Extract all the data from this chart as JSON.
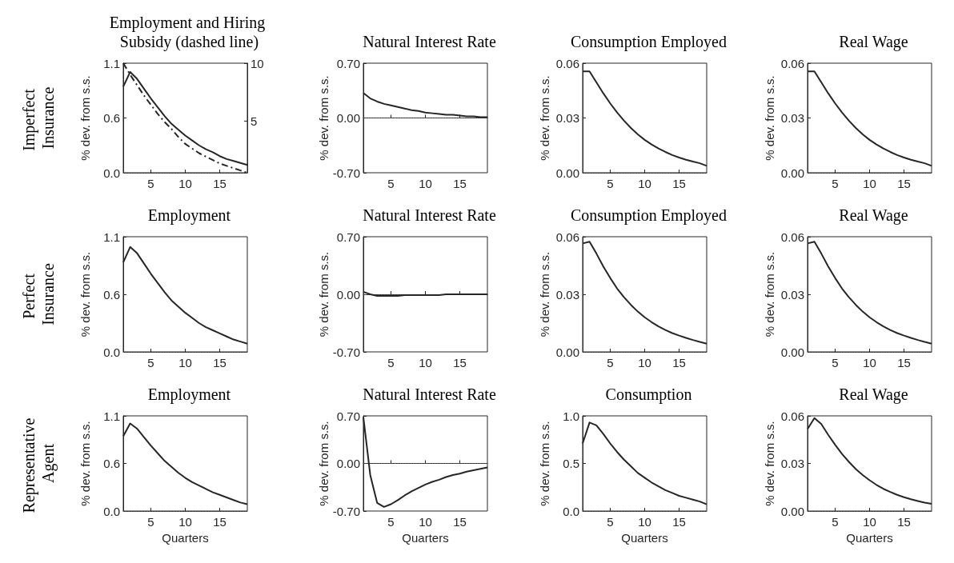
{
  "chart_data": [
    {
      "type": "line",
      "title": "Employment and Hiring Subsidy (dashed line)",
      "ylabel": "% dev. from s.s.",
      "annotations": [
        "Imperfect Insurance"
      ],
      "x": [
        1,
        2,
        3,
        4,
        5,
        6,
        7,
        8,
        9,
        10,
        11,
        12,
        13,
        14,
        15,
        16,
        17,
        18,
        19
      ],
      "xlim": [
        1,
        19
      ],
      "xticks": [
        5,
        10,
        15
      ],
      "ylim": [
        0,
        1.12
      ],
      "yticks": [
        {
          "value": 0,
          "label": "0.0"
        },
        {
          "value": 0.56,
          "label": "0.6"
        },
        {
          "value": 1.12,
          "label": "1.1"
        }
      ],
      "y2lim": [
        0.5,
        10
      ],
      "y2ticks": [
        5,
        10
      ],
      "grid": false,
      "marker": "none",
      "series": [
        {
          "color": "#262626",
          "line_style": "solid",
          "values": [
            0.88,
            1.03,
            0.96,
            0.86,
            0.76,
            0.67,
            0.58,
            0.5,
            0.44,
            0.38,
            0.33,
            0.28,
            0.24,
            0.21,
            0.17,
            0.14,
            0.12,
            0.1,
            0.08
          ]
        },
        {
          "color": "#262626",
          "line_style": "dashed",
          "axis": "y2",
          "values": [
            10,
            9.0,
            8.1,
            7.2,
            6.4,
            5.6,
            4.9,
            4.3,
            3.6,
            3.0,
            2.6,
            2.2,
            1.9,
            1.6,
            1.3,
            1.1,
            0.9,
            0.7,
            0.5
          ]
        }
      ],
      "ref_lines": [
        {
          "axis": "y",
          "value": 0,
          "line_style": "dotted",
          "color": "#555555"
        }
      ]
    },
    {
      "type": "line",
      "title": "Natural Interest Rate",
      "ylabel": "% dev. from s.s.",
      "x": [
        1,
        2,
        3,
        4,
        5,
        6,
        7,
        8,
        9,
        10,
        11,
        12,
        13,
        14,
        15,
        16,
        17,
        18,
        19
      ],
      "xlim": [
        1,
        19
      ],
      "xticks": [
        5,
        10,
        15
      ],
      "ylim": [
        -0.7,
        0.7
      ],
      "yticks": [
        {
          "value": -0.7,
          "label": "-0.70"
        },
        {
          "value": 0,
          "label": "0.00"
        },
        {
          "value": 0.7,
          "label": "0.70"
        }
      ],
      "grid": false,
      "marker": "none",
      "series": [
        {
          "color": "#262626",
          "line_style": "solid",
          "values": [
            0.32,
            0.25,
            0.21,
            0.18,
            0.16,
            0.14,
            0.12,
            0.1,
            0.09,
            0.07,
            0.06,
            0.05,
            0.04,
            0.04,
            0.03,
            0.02,
            0.02,
            0.01,
            0.01
          ]
        }
      ],
      "ref_lines": [
        {
          "axis": "y",
          "value": 0,
          "line_style": "dotted",
          "color": "#555555"
        }
      ]
    },
    {
      "type": "line",
      "title": "Consumption Employed",
      "ylabel": "% dev. from s.s.",
      "x": [
        1,
        2,
        3,
        4,
        5,
        6,
        7,
        8,
        9,
        10,
        11,
        12,
        13,
        14,
        15,
        16,
        17,
        18,
        19
      ],
      "xlim": [
        1,
        19
      ],
      "xticks": [
        5,
        10,
        15
      ],
      "ylim": [
        0,
        0.06
      ],
      "yticks": [
        {
          "value": 0,
          "label": "0.00"
        },
        {
          "value": 0.03,
          "label": "0.03"
        },
        {
          "value": 0.06,
          "label": "0.06"
        }
      ],
      "grid": false,
      "marker": "none",
      "series": [
        {
          "color": "#262626",
          "line_style": "solid",
          "values": [
            0.0555,
            0.0555,
            0.0495,
            0.0435,
            0.038,
            0.033,
            0.0285,
            0.0245,
            0.021,
            0.018,
            0.0155,
            0.0133,
            0.0114,
            0.0097,
            0.0083,
            0.0071,
            0.0061,
            0.0052,
            0.0038
          ]
        }
      ],
      "ref_lines": [
        {
          "axis": "y",
          "value": 0,
          "line_style": "dotted",
          "color": "#555555"
        }
      ]
    },
    {
      "type": "line",
      "title": "Real Wage",
      "ylabel": "% dev. from s.s.",
      "x": [
        1,
        2,
        3,
        4,
        5,
        6,
        7,
        8,
        9,
        10,
        11,
        12,
        13,
        14,
        15,
        16,
        17,
        18,
        19
      ],
      "xlim": [
        1,
        19
      ],
      "xticks": [
        5,
        10,
        15
      ],
      "ylim": [
        0,
        0.06
      ],
      "yticks": [
        {
          "value": 0,
          "label": "0.00"
        },
        {
          "value": 0.03,
          "label": "0.03"
        },
        {
          "value": 0.06,
          "label": "0.06"
        }
      ],
      "grid": false,
      "marker": "none",
      "series": [
        {
          "color": "#262626",
          "line_style": "solid",
          "values": [
            0.0555,
            0.0555,
            0.0495,
            0.0435,
            0.038,
            0.033,
            0.0285,
            0.0245,
            0.021,
            0.018,
            0.0155,
            0.0133,
            0.0114,
            0.0097,
            0.0083,
            0.0071,
            0.0061,
            0.0052,
            0.0038
          ]
        }
      ],
      "ref_lines": [
        {
          "axis": "y",
          "value": 0,
          "line_style": "dotted",
          "color": "#555555"
        }
      ]
    },
    {
      "type": "line",
      "title": "Employment",
      "ylabel": "% dev. from s.s.",
      "annotations": [
        "Perfect Insurance"
      ],
      "x": [
        1,
        2,
        3,
        4,
        5,
        6,
        7,
        8,
        9,
        10,
        11,
        12,
        13,
        14,
        15,
        16,
        17,
        18,
        19
      ],
      "xlim": [
        1,
        19
      ],
      "xticks": [
        5,
        10,
        15
      ],
      "ylim": [
        0,
        1.12
      ],
      "yticks": [
        {
          "value": 0,
          "label": "0.0"
        },
        {
          "value": 0.56,
          "label": "0.6"
        },
        {
          "value": 1.12,
          "label": "1.1"
        }
      ],
      "grid": false,
      "marker": "none",
      "series": [
        {
          "color": "#262626",
          "line_style": "solid",
          "values": [
            0.87,
            1.02,
            0.96,
            0.86,
            0.76,
            0.67,
            0.58,
            0.5,
            0.44,
            0.38,
            0.33,
            0.28,
            0.24,
            0.21,
            0.18,
            0.15,
            0.12,
            0.1,
            0.08
          ]
        }
      ],
      "ref_lines": [
        {
          "axis": "y",
          "value": 0,
          "line_style": "dotted",
          "color": "#555555"
        }
      ]
    },
    {
      "type": "line",
      "title": "Natural Interest Rate",
      "ylabel": "% dev. from s.s.",
      "x": [
        1,
        2,
        3,
        4,
        5,
        6,
        7,
        8,
        9,
        10,
        11,
        12,
        13,
        14,
        15,
        16,
        17,
        18,
        19
      ],
      "xlim": [
        1,
        19
      ],
      "xticks": [
        5,
        10,
        15
      ],
      "ylim": [
        -0.7,
        0.7
      ],
      "yticks": [
        {
          "value": -0.7,
          "label": "-0.70"
        },
        {
          "value": 0,
          "label": "0.00"
        },
        {
          "value": 0.7,
          "label": "0.70"
        }
      ],
      "grid": false,
      "marker": "none",
      "series": [
        {
          "color": "#262626",
          "line_style": "solid",
          "values": [
            0.03,
            0,
            -0.02,
            -0.02,
            -0.02,
            -0.02,
            -0.01,
            -0.01,
            -0.01,
            -0.01,
            -0.01,
            -0.01,
            0,
            0,
            0,
            0,
            0,
            0,
            0
          ]
        }
      ],
      "ref_lines": [
        {
          "axis": "y",
          "value": 0,
          "line_style": "dotted",
          "color": "#555555"
        }
      ]
    },
    {
      "type": "line",
      "title": "Consumption Employed",
      "ylabel": "% dev. from s.s.",
      "x": [
        1,
        2,
        3,
        4,
        5,
        6,
        7,
        8,
        9,
        10,
        11,
        12,
        13,
        14,
        15,
        16,
        17,
        18,
        19
      ],
      "xlim": [
        1,
        19
      ],
      "xticks": [
        5,
        10,
        15
      ],
      "ylim": [
        0,
        0.06
      ],
      "yticks": [
        {
          "value": 0,
          "label": "0.00"
        },
        {
          "value": 0.03,
          "label": "0.03"
        },
        {
          "value": 0.06,
          "label": "0.06"
        }
      ],
      "grid": false,
      "marker": "none",
      "series": [
        {
          "color": "#262626",
          "line_style": "solid",
          "values": [
            0.0565,
            0.0574,
            0.0512,
            0.0445,
            0.0385,
            0.033,
            0.0285,
            0.0245,
            0.021,
            0.018,
            0.0155,
            0.0133,
            0.0114,
            0.0098,
            0.0085,
            0.0073,
            0.0062,
            0.0052,
            0.0043
          ]
        }
      ],
      "ref_lines": [
        {
          "axis": "y",
          "value": 0,
          "line_style": "dotted",
          "color": "#555555"
        }
      ]
    },
    {
      "type": "line",
      "title": "Real Wage",
      "ylabel": "% dev. from s.s.",
      "x": [
        1,
        2,
        3,
        4,
        5,
        6,
        7,
        8,
        9,
        10,
        11,
        12,
        13,
        14,
        15,
        16,
        17,
        18,
        19
      ],
      "xlim": [
        1,
        19
      ],
      "xticks": [
        5,
        10,
        15
      ],
      "ylim": [
        0,
        0.06
      ],
      "yticks": [
        {
          "value": 0,
          "label": "0.00"
        },
        {
          "value": 0.03,
          "label": "0.03"
        },
        {
          "value": 0.06,
          "label": "0.06"
        }
      ],
      "grid": false,
      "marker": "none",
      "series": [
        {
          "color": "#262626",
          "line_style": "solid",
          "values": [
            0.0565,
            0.0574,
            0.0512,
            0.0445,
            0.0385,
            0.033,
            0.0285,
            0.0245,
            0.021,
            0.018,
            0.0155,
            0.0133,
            0.0114,
            0.0098,
            0.0085,
            0.0073,
            0.0062,
            0.0052,
            0.0043
          ]
        }
      ],
      "ref_lines": [
        {
          "axis": "y",
          "value": 0,
          "line_style": "dotted",
          "color": "#555555"
        }
      ]
    },
    {
      "type": "line",
      "title": "Employment",
      "ylabel": "% dev. from s.s.",
      "xlabel": "Quarters",
      "annotations": [
        "Representative Agent"
      ],
      "x": [
        1,
        2,
        3,
        4,
        5,
        6,
        7,
        8,
        9,
        10,
        11,
        12,
        13,
        14,
        15,
        16,
        17,
        18,
        19
      ],
      "xlim": [
        1,
        19
      ],
      "xticks": [
        5,
        10,
        15
      ],
      "ylim": [
        0,
        1.12
      ],
      "yticks": [
        {
          "value": 0,
          "label": "0.0"
        },
        {
          "value": 0.56,
          "label": "0.6"
        },
        {
          "value": 1.12,
          "label": "1.1"
        }
      ],
      "grid": false,
      "marker": "none",
      "series": [
        {
          "color": "#262626",
          "line_style": "solid",
          "values": [
            0.88,
            1.03,
            0.97,
            0.87,
            0.77,
            0.68,
            0.59,
            0.52,
            0.45,
            0.39,
            0.34,
            0.3,
            0.26,
            0.22,
            0.19,
            0.16,
            0.13,
            0.1,
            0.08
          ]
        }
      ],
      "ref_lines": [
        {
          "axis": "y",
          "value": 0,
          "line_style": "dotted",
          "color": "#555555"
        }
      ]
    },
    {
      "type": "line",
      "title": "Natural Interest Rate",
      "ylabel": "% dev. from s.s.",
      "xlabel": "Quarters",
      "x": [
        1,
        2,
        3,
        4,
        5,
        6,
        7,
        8,
        9,
        10,
        11,
        12,
        13,
        14,
        15,
        16,
        17,
        18,
        19
      ],
      "xlim": [
        1,
        19
      ],
      "xticks": [
        5,
        10,
        15
      ],
      "ylim": [
        -0.7,
        0.7
      ],
      "yticks": [
        {
          "value": -0.7,
          "label": "-0.70"
        },
        {
          "value": 0,
          "label": "0.00"
        },
        {
          "value": 0.7,
          "label": "0.70"
        }
      ],
      "grid": false,
      "marker": "none",
      "series": [
        {
          "color": "#262626",
          "line_style": "solid",
          "values": [
            0.68,
            -0.17,
            -0.58,
            -0.64,
            -0.6,
            -0.54,
            -0.47,
            -0.41,
            -0.36,
            -0.31,
            -0.27,
            -0.24,
            -0.2,
            -0.17,
            -0.15,
            -0.12,
            -0.1,
            -0.08,
            -0.06
          ]
        }
      ],
      "ref_lines": [
        {
          "axis": "y",
          "value": 0,
          "line_style": "dotted",
          "color": "#555555"
        }
      ]
    },
    {
      "type": "line",
      "title": "Consumption",
      "ylabel": "% dev. from s.s.",
      "xlabel": "Quarters",
      "x": [
        1,
        2,
        3,
        4,
        5,
        6,
        7,
        8,
        9,
        10,
        11,
        12,
        13,
        14,
        15,
        16,
        17,
        18,
        19
      ],
      "xlim": [
        1,
        19
      ],
      "xticks": [
        5,
        10,
        15
      ],
      "ylim": [
        0,
        1
      ],
      "yticks": [
        {
          "value": 0,
          "label": "0.0"
        },
        {
          "value": 0.5,
          "label": "0.5"
        },
        {
          "value": 1,
          "label": "1.0"
        }
      ],
      "grid": false,
      "marker": "none",
      "series": [
        {
          "color": "#262626",
          "line_style": "solid",
          "values": [
            0.71,
            0.93,
            0.9,
            0.81,
            0.71,
            0.62,
            0.54,
            0.47,
            0.4,
            0.35,
            0.3,
            0.26,
            0.22,
            0.19,
            0.16,
            0.14,
            0.12,
            0.1,
            0.07
          ]
        }
      ],
      "ref_lines": [
        {
          "axis": "y",
          "value": 0,
          "line_style": "dotted",
          "color": "#555555"
        }
      ]
    },
    {
      "type": "line",
      "title": "Real Wage",
      "ylabel": "% dev. from s.s.",
      "xlabel": "Quarters",
      "x": [
        1,
        2,
        3,
        4,
        5,
        6,
        7,
        8,
        9,
        10,
        11,
        12,
        13,
        14,
        15,
        16,
        17,
        18,
        19
      ],
      "xlim": [
        1,
        19
      ],
      "xticks": [
        5,
        10,
        15
      ],
      "ylim": [
        0,
        0.06
      ],
      "yticks": [
        {
          "value": 0,
          "label": "0.00"
        },
        {
          "value": 0.03,
          "label": "0.03"
        },
        {
          "value": 0.06,
          "label": "0.06"
        }
      ],
      "grid": false,
      "marker": "none",
      "series": [
        {
          "color": "#262626",
          "line_style": "solid",
          "values": [
            0.0517,
            0.0586,
            0.0548,
            0.048,
            0.0418,
            0.036,
            0.031,
            0.0265,
            0.0227,
            0.0194,
            0.0165,
            0.014,
            0.012,
            0.0102,
            0.0087,
            0.0074,
            0.0063,
            0.0053,
            0.0045
          ]
        }
      ],
      "ref_lines": [
        {
          "axis": "y",
          "value": 0,
          "line_style": "dotted",
          "color": "#555555"
        }
      ]
    }
  ]
}
